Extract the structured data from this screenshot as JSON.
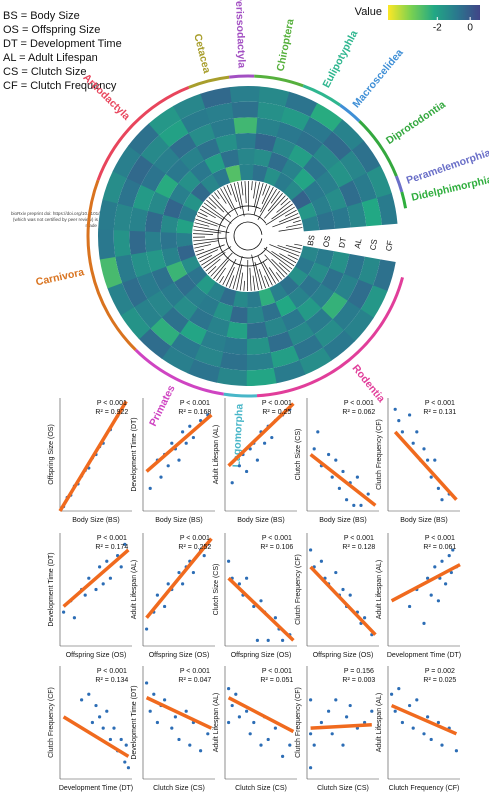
{
  "legend_lines": [
    "BS = Body Size",
    "OS = Offspring Size",
    "DT = Development Time",
    "AL = Adult Lifespan",
    "CS = Clutch Size",
    "CF = Clutch Frequency"
  ],
  "preprint_note": [
    "bioRxiv preprint doi: https://doi.org/10.1101/2025.03.09.642181; this version posted March 11, 2025. The copyright holder for this preprint",
    "(which was not certified by peer review) is the author/funder, who has granted bioRxiv a license to display the preprint in perpetuity. It is",
    "made available under aCC-BY-NC-ND 4.0 International license."
  ],
  "chart_data": [
    {
      "type": "circular_heatmap",
      "rows": [
        "BS",
        "OS",
        "DT",
        "AL",
        "CS",
        "CF"
      ],
      "values": [
        [
          -1.2,
          -0.8,
          -1.5,
          -0.6,
          -1.0,
          -2.4,
          -0.9,
          -1.3,
          -0.5,
          -1.1,
          -1.8,
          -0.7,
          -1.4,
          -0.3,
          -1.0,
          -2.0,
          -0.9,
          -1.6,
          -0.4,
          -1.2,
          -0.8,
          -3.0,
          -1.1,
          -0.6,
          -1.5,
          -0.9,
          -1.3,
          -0.2,
          -1.7,
          -1.0
        ],
        [
          -0.9,
          -1.4,
          -0.7,
          -1.1,
          -2.2,
          -0.6,
          -1.2,
          -0.4,
          -1.6,
          -0.9,
          -1.0,
          -0.5,
          -2.6,
          -1.1,
          -0.7,
          -1.3,
          -0.3,
          -1.0,
          -1.5,
          -0.8,
          -1.9,
          -0.6,
          -1.2,
          -1.4,
          -0.5,
          -1.1,
          -2.1,
          -0.8,
          -1.0,
          -0.6
        ],
        [
          -1.5,
          -0.6,
          -1.0,
          -1.8,
          -0.8,
          -1.2,
          -0.5,
          -2.0,
          -1.1,
          -0.7,
          -1.4,
          -0.9,
          -0.6,
          -1.7,
          -1.0,
          -0.4,
          -1.3,
          -2.3,
          -0.8,
          -1.1,
          -0.6,
          -1.5,
          -0.9,
          -0.3,
          -1.2,
          -1.9,
          -0.7,
          -1.0,
          -1.4,
          -0.8
        ],
        [
          -0.7,
          -1.1,
          -2.5,
          -0.9,
          -1.3,
          -0.5,
          -1.6,
          -0.8,
          -1.0,
          -2.1,
          -0.6,
          -1.2,
          -0.9,
          -1.5,
          -0.4,
          -1.1,
          -1.8,
          -0.7,
          -1.0,
          -0.5,
          -1.4,
          -0.9,
          -2.7,
          -1.1,
          -0.8,
          -0.6,
          -1.3,
          -1.6,
          -0.5,
          -1.2
        ],
        [
          -1.3,
          -0.5,
          -0.9,
          -1.4,
          -0.7,
          -1.9,
          -1.0,
          -0.6,
          -1.2,
          -0.8,
          -2.4,
          -1.1,
          -0.5,
          -0.9,
          -1.6,
          -1.2,
          -0.7,
          -0.4,
          -1.3,
          -2.0,
          -0.9,
          -1.0,
          -0.6,
          -1.5,
          -1.8,
          -0.8,
          -0.4,
          -1.2,
          -0.9,
          -2.2
        ],
        [
          -0.6,
          -1.7,
          -1.1,
          -0.8,
          -1.4,
          -0.9,
          -2.1,
          -1.2,
          -0.7,
          -1.0,
          -0.5,
          -1.6,
          -1.1,
          -2.8,
          -0.8,
          -0.9,
          -1.4,
          -1.0,
          -0.6,
          -1.7,
          -1.2,
          -0.4,
          -1.0,
          -1.3,
          -0.7,
          -2.3,
          -1.1,
          -0.6,
          -1.5,
          -0.9
        ]
      ],
      "colormap": [
        "#fde725",
        "#7ad151",
        "#22a884",
        "#2a788e",
        "#414487"
      ],
      "colorbar": {
        "title": "Value",
        "lim": [
          -5,
          0.6
        ],
        "ticks": [
          -2,
          0
        ]
      },
      "groups": [
        {
          "name": "Rodentia",
          "color": "#e13e9a",
          "n": 24
        },
        {
          "name": "Lagomorpha",
          "color": "#48b6c8",
          "n": 4
        },
        {
          "name": "Primates",
          "color": "#cf44c2",
          "n": 12
        },
        {
          "name": "Carnivora",
          "color": "#d9731f",
          "n": 22
        },
        {
          "name": "Artiodactyla",
          "color": "#e8455c",
          "n": 16
        },
        {
          "name": "Cetacea",
          "color": "#a89e2c",
          "n": 5
        },
        {
          "name": "Perissodactyla",
          "color": "#a24fc2",
          "n": 3
        },
        {
          "name": "Chiroptera",
          "color": "#56b03d",
          "n": 6
        },
        {
          "name": "Eulipotyphla",
          "color": "#2fb68f",
          "n": 5
        },
        {
          "name": "Macroscelidea",
          "color": "#3f8fd6",
          "n": 3
        },
        {
          "name": "Diprotodontia",
          "color": "#34a83f",
          "n": 8
        },
        {
          "name": "Peramelemorphia",
          "color": "#6a6fc8",
          "n": 2
        },
        {
          "name": "Didelphimorphia",
          "color": "#2fae3d",
          "n": 2
        }
      ]
    },
    {
      "type": "scatter",
      "xlabel": "Body Size (BS)",
      "ylabel": "Offspring Size (OS)",
      "stats": [
        "P < 0.001",
        "R² = 0.922"
      ],
      "x": [
        0.05,
        0.1,
        0.15,
        0.2,
        0.25,
        0.3,
        0.35,
        0.4,
        0.45,
        0.5,
        0.55,
        0.6,
        0.7,
        0.8
      ],
      "values": [
        0.04,
        0.12,
        0.14,
        0.22,
        0.24,
        0.31,
        0.36,
        0.38,
        0.47,
        0.5,
        0.57,
        0.6,
        0.72,
        0.84
      ],
      "xlim": [
        0,
        1
      ],
      "ylim": [
        0,
        1
      ],
      "color": "#2c6db5",
      "fit": {
        "x": [
          0,
          0.92
        ],
        "values": [
          0,
          0.97
        ],
        "color": "#f06a1e"
      }
    },
    {
      "type": "scatter",
      "xlabel": "Body Size (BS)",
      "ylabel": "Development Time (DT)",
      "stats": [
        "P < 0.001",
        "R² = 0.168"
      ],
      "x": [
        0.1,
        0.2,
        0.25,
        0.3,
        0.35,
        0.4,
        0.45,
        0.5,
        0.55,
        0.6,
        0.65,
        0.7,
        0.8,
        0.9
      ],
      "values": [
        0.2,
        0.45,
        0.3,
        0.5,
        0.4,
        0.6,
        0.55,
        0.45,
        0.7,
        0.6,
        0.75,
        0.65,
        0.8,
        0.85
      ],
      "xlim": [
        0,
        1
      ],
      "ylim": [
        0,
        1
      ],
      "color": "#2c6db5",
      "fit": {
        "x": [
          0.05,
          0.95
        ],
        "values": [
          0.35,
          0.85
        ],
        "color": "#f06a1e"
      }
    },
    {
      "type": "scatter",
      "xlabel": "Body Size (BS)",
      "ylabel": "Adult Lifespan (AL)",
      "stats": [
        "P < 0.001",
        "R² = 0.25"
      ],
      "x": [
        0.1,
        0.2,
        0.25,
        0.3,
        0.35,
        0.4,
        0.45,
        0.5,
        0.55,
        0.6,
        0.65,
        0.7,
        0.8,
        0.9
      ],
      "values": [
        0.25,
        0.4,
        0.5,
        0.35,
        0.55,
        0.6,
        0.45,
        0.7,
        0.6,
        0.75,
        0.65,
        0.8,
        0.85,
        0.9
      ],
      "xlim": [
        0,
        1
      ],
      "ylim": [
        0,
        1
      ],
      "color": "#2c6db5",
      "fit": {
        "x": [
          0.05,
          0.95
        ],
        "values": [
          0.4,
          0.95
        ],
        "color": "#f06a1e"
      }
    },
    {
      "type": "scatter",
      "xlabel": "Body Size (BS)",
      "ylabel": "Clutch Size (CS)",
      "stats": [
        "P < 0.001",
        "R² = 0.062"
      ],
      "x": [
        0.1,
        0.15,
        0.2,
        0.3,
        0.35,
        0.4,
        0.45,
        0.5,
        0.55,
        0.6,
        0.65,
        0.7,
        0.75,
        0.85
      ],
      "values": [
        0.55,
        0.7,
        0.4,
        0.5,
        0.3,
        0.45,
        0.2,
        0.35,
        0.1,
        0.25,
        0.05,
        0.3,
        0.05,
        0.15
      ],
      "xlim": [
        0,
        1
      ],
      "ylim": [
        0,
        1
      ],
      "color": "#2c6db5",
      "fit": {
        "x": [
          0.05,
          0.95
        ],
        "values": [
          0.5,
          0.05
        ],
        "color": "#f06a1e"
      }
    },
    {
      "type": "scatter",
      "xlabel": "Body Size (BS)",
      "ylabel": "Clutch Frequency (CF)",
      "stats": [
        "P < 0.001",
        "R² = 0.131"
      ],
      "x": [
        0.1,
        0.15,
        0.2,
        0.3,
        0.35,
        0.4,
        0.45,
        0.5,
        0.55,
        0.6,
        0.65,
        0.7,
        0.75,
        0.85
      ],
      "values": [
        0.9,
        0.8,
        0.7,
        0.85,
        0.6,
        0.7,
        0.45,
        0.55,
        0.45,
        0.3,
        0.45,
        0.2,
        0.1,
        0.15
      ],
      "xlim": [
        0,
        1
      ],
      "ylim": [
        0,
        1
      ],
      "color": "#2c6db5",
      "fit": {
        "x": [
          0.1,
          0.95
        ],
        "values": [
          0.7,
          0.1
        ],
        "color": "#f06a1e"
      }
    },
    {
      "type": "scatter",
      "xlabel": "Offspring Size (OS)",
      "ylabel": "Development Time (DT)",
      "stats": [
        "P < 0.001",
        "R² = 0.174"
      ],
      "x": [
        0.05,
        0.15,
        0.2,
        0.3,
        0.35,
        0.4,
        0.5,
        0.55,
        0.6,
        0.65,
        0.7,
        0.8,
        0.85,
        0.9
      ],
      "values": [
        0.3,
        0.4,
        0.25,
        0.5,
        0.45,
        0.6,
        0.5,
        0.7,
        0.55,
        0.75,
        0.6,
        0.8,
        0.7,
        0.9
      ],
      "xlim": [
        0,
        1
      ],
      "ylim": [
        0,
        1
      ],
      "color": "#2c6db5",
      "fit": {
        "x": [
          0.05,
          0.95
        ],
        "values": [
          0.35,
          0.85
        ],
        "color": "#f06a1e"
      }
    },
    {
      "type": "scatter",
      "xlabel": "Offspring Size (OS)",
      "ylabel": "Adult Lifespan (AL)",
      "stats": [
        "P < 0.001",
        "R² = 0.252"
      ],
      "x": [
        0.05,
        0.15,
        0.2,
        0.3,
        0.35,
        0.4,
        0.5,
        0.55,
        0.6,
        0.65,
        0.7,
        0.8,
        0.85,
        0.9
      ],
      "values": [
        0.15,
        0.3,
        0.45,
        0.35,
        0.55,
        0.5,
        0.65,
        0.55,
        0.7,
        0.75,
        0.65,
        0.85,
        0.8,
        0.9
      ],
      "xlim": [
        0,
        1
      ],
      "ylim": [
        0,
        1
      ],
      "color": "#2c6db5",
      "fit": {
        "x": [
          0.05,
          0.95
        ],
        "values": [
          0.25,
          0.95
        ],
        "color": "#f06a1e"
      }
    },
    {
      "type": "scatter",
      "xlabel": "Offspring Size (OS)",
      "ylabel": "Clutch Size (CS)",
      "stats": [
        "P < 0.001",
        "R² = 0.106"
      ],
      "x": [
        0.05,
        0.1,
        0.2,
        0.25,
        0.3,
        0.4,
        0.45,
        0.5,
        0.55,
        0.6,
        0.7,
        0.75,
        0.8,
        0.9
      ],
      "values": [
        0.75,
        0.6,
        0.55,
        0.45,
        0.6,
        0.35,
        0.05,
        0.4,
        0.3,
        0.05,
        0.25,
        0.15,
        0.05,
        0.1
      ],
      "xlim": [
        0,
        1
      ],
      "ylim": [
        0,
        1
      ],
      "color": "#2c6db5",
      "fit": {
        "x": [
          0.05,
          0.95
        ],
        "values": [
          0.6,
          0.05
        ],
        "color": "#f06a1e"
      }
    },
    {
      "type": "scatter",
      "xlabel": "Offspring Size (OS)",
      "ylabel": "Clutch Frequency (CF)",
      "stats": [
        "P < 0.001",
        "R² = 0.128"
      ],
      "x": [
        0.05,
        0.1,
        0.2,
        0.25,
        0.3,
        0.4,
        0.45,
        0.5,
        0.55,
        0.6,
        0.7,
        0.75,
        0.8,
        0.9
      ],
      "values": [
        0.85,
        0.7,
        0.75,
        0.6,
        0.55,
        0.65,
        0.45,
        0.5,
        0.35,
        0.45,
        0.3,
        0.2,
        0.25,
        0.1
      ],
      "xlim": [
        0,
        1
      ],
      "ylim": [
        0,
        1
      ],
      "color": "#2c6db5",
      "fit": {
        "x": [
          0.05,
          0.95
        ],
        "values": [
          0.7,
          0.1
        ],
        "color": "#f06a1e"
      }
    },
    {
      "type": "scatter",
      "xlabel": "Development Time (DT)",
      "ylabel": "Adult Lifespan (AL)",
      "stats": [
        "P < 0.001",
        "R² = 0.061"
      ],
      "x": [
        0.3,
        0.4,
        0.5,
        0.55,
        0.6,
        0.65,
        0.7,
        0.72,
        0.75,
        0.8,
        0.85,
        0.88,
        0.9,
        0.95
      ],
      "values": [
        0.35,
        0.5,
        0.2,
        0.6,
        0.45,
        0.7,
        0.4,
        0.6,
        0.75,
        0.55,
        0.8,
        0.65,
        0.85,
        0.7
      ],
      "xlim": [
        0,
        1
      ],
      "ylim": [
        0,
        1
      ],
      "color": "#2c6db5",
      "fit": {
        "x": [
          0.05,
          1
        ],
        "values": [
          0.4,
          0.72
        ],
        "color": "#f06a1e"
      }
    },
    {
      "type": "scatter",
      "xlabel": "Development Time (DT)",
      "ylabel": "Clutch Frequency (CF)",
      "stats": [
        "P < 0.001",
        "R² = 0.134"
      ],
      "x": [
        0.3,
        0.4,
        0.45,
        0.5,
        0.55,
        0.6,
        0.65,
        0.7,
        0.75,
        0.8,
        0.85,
        0.9,
        0.92,
        0.95
      ],
      "values": [
        0.7,
        0.75,
        0.5,
        0.65,
        0.55,
        0.45,
        0.6,
        0.35,
        0.45,
        0.25,
        0.35,
        0.15,
        0.3,
        0.1
      ],
      "xlim": [
        0,
        1
      ],
      "ylim": [
        0,
        1
      ],
      "color": "#2c6db5",
      "fit": {
        "x": [
          0.05,
          0.95
        ],
        "values": [
          0.55,
          0.2
        ],
        "color": "#f06a1e"
      }
    },
    {
      "type": "scatter",
      "xlabel": "Clutch Size (CS)",
      "ylabel": "Development Time (DT)",
      "stats": [
        "P < 0.001",
        "R² = 0.047"
      ],
      "x": [
        0.05,
        0.1,
        0.15,
        0.2,
        0.25,
        0.3,
        0.4,
        0.45,
        0.5,
        0.6,
        0.65,
        0.7,
        0.8,
        0.9
      ],
      "values": [
        0.85,
        0.6,
        0.75,
        0.5,
        0.65,
        0.7,
        0.45,
        0.55,
        0.35,
        0.6,
        0.3,
        0.5,
        0.25,
        0.4
      ],
      "xlim": [
        0,
        1
      ],
      "ylim": [
        0,
        1
      ],
      "color": "#2c6db5",
      "fit": {
        "x": [
          0.05,
          0.95
        ],
        "values": [
          0.72,
          0.45
        ],
        "color": "#f06a1e"
      }
    },
    {
      "type": "scatter",
      "xlabel": "Clutch Size (CS)",
      "ylabel": "Adult Lifespan (AL)",
      "stats": [
        "P < 0.001",
        "R² = 0.051"
      ],
      "x": [
        0.05,
        0.05,
        0.1,
        0.15,
        0.2,
        0.3,
        0.35,
        0.4,
        0.5,
        0.55,
        0.6,
        0.7,
        0.8,
        0.9
      ],
      "values": [
        0.8,
        0.5,
        0.65,
        0.75,
        0.55,
        0.6,
        0.4,
        0.5,
        0.3,
        0.55,
        0.35,
        0.45,
        0.2,
        0.3
      ],
      "xlim": [
        0,
        1
      ],
      "ylim": [
        0,
        1
      ],
      "color": "#2c6db5",
      "fit": {
        "x": [
          0.05,
          0.95
        ],
        "values": [
          0.72,
          0.42
        ],
        "color": "#f06a1e"
      }
    },
    {
      "type": "scatter",
      "xlabel": "Clutch Size (CS)",
      "ylabel": "Clutch Frequency (CF)",
      "stats": [
        "P = 0.156",
        "R² = 0.003"
      ],
      "x": [
        0.05,
        0.05,
        0.05,
        0.1,
        0.2,
        0.3,
        0.35,
        0.4,
        0.5,
        0.55,
        0.6,
        0.7,
        0.8,
        0.9
      ],
      "values": [
        0.1,
        0.4,
        0.7,
        0.3,
        0.5,
        0.6,
        0.4,
        0.7,
        0.3,
        0.55,
        0.65,
        0.45,
        0.5,
        0.6
      ],
      "xlim": [
        0,
        1
      ],
      "ylim": [
        0,
        1
      ],
      "color": "#2c6db5",
      "fit": {
        "x": [
          0.05,
          0.9
        ],
        "values": [
          0.45,
          0.48
        ],
        "color": "#f06a1e"
      }
    },
    {
      "type": "scatter",
      "xlabel": "Clutch Frequency (CF)",
      "ylabel": "Adult Lifespan (AL)",
      "stats": [
        "P = 0.002",
        "R² = 0.025"
      ],
      "x": [
        0.05,
        0.1,
        0.15,
        0.2,
        0.3,
        0.35,
        0.4,
        0.5,
        0.55,
        0.6,
        0.7,
        0.75,
        0.85,
        0.95
      ],
      "values": [
        0.75,
        0.6,
        0.8,
        0.5,
        0.65,
        0.45,
        0.7,
        0.4,
        0.55,
        0.35,
        0.5,
        0.3,
        0.45,
        0.25
      ],
      "xlim": [
        0,
        1
      ],
      "ylim": [
        0,
        1
      ],
      "color": "#2c6db5",
      "fit": {
        "x": [
          0.05,
          0.95
        ],
        "values": [
          0.65,
          0.4
        ],
        "color": "#f06a1e"
      }
    }
  ]
}
